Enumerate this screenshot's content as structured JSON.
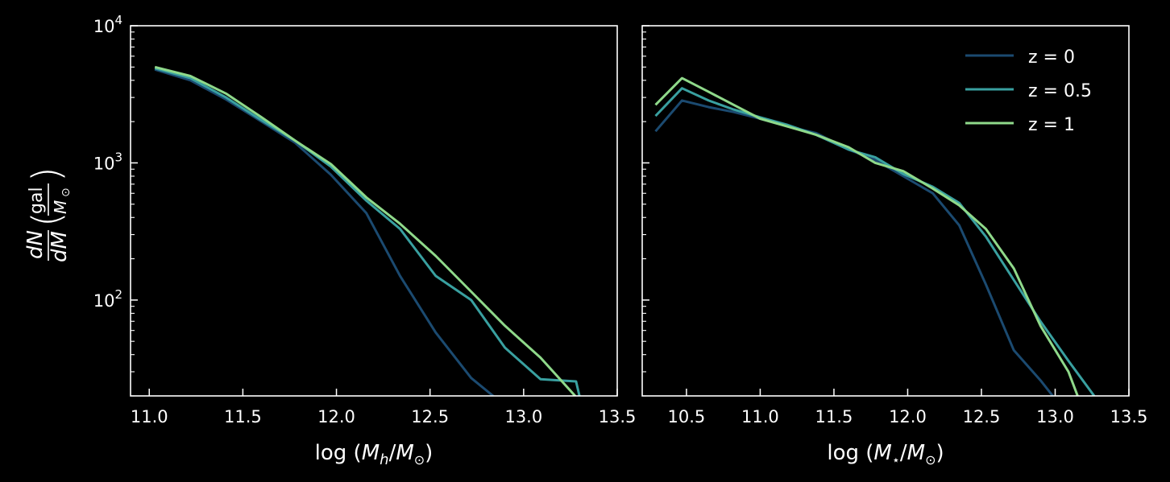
{
  "colors": {
    "background": "#000000",
    "axes": "#ffffff",
    "z0": "#1b4a70",
    "z05": "#39a0a0",
    "z1": "#8fd98a"
  },
  "chart_data": [
    {
      "type": "line",
      "xlabel": "log (M_h/M_⊙)",
      "ylabel": "dN/dM (gal/M_⊙)",
      "yscale": "log",
      "xlim": [
        10.9,
        13.5
      ],
      "ylim": [
        20,
        10000
      ],
      "x_ticks": [
        "11.0",
        "11.5",
        "12.0",
        "12.5",
        "13.0",
        "13.5"
      ],
      "y_ticks": [
        "10^2",
        "10^3",
        "10^4"
      ],
      "legend": false,
      "series": [
        {
          "name": "z = 0",
          "color": "#1b4a70",
          "x": [
            11.03,
            11.22,
            11.41,
            11.6,
            11.78,
            11.97,
            12.16,
            12.34,
            12.53,
            12.72,
            12.9
          ],
          "y": [
            4800,
            4000,
            2900,
            2000,
            1400,
            820,
            430,
            150,
            58,
            27,
            17
          ]
        },
        {
          "name": "z = 0.5",
          "color": "#39a0a0",
          "x": [
            11.03,
            11.22,
            11.41,
            11.6,
            11.78,
            11.97,
            12.16,
            12.34,
            12.53,
            12.72,
            12.9,
            13.09,
            13.28,
            13.31
          ],
          "y": [
            4900,
            4150,
            3000,
            2050,
            1450,
            940,
            530,
            330,
            150,
            100,
            45,
            26.5,
            25.5,
            17
          ]
        },
        {
          "name": "z = 1",
          "color": "#8fd98a",
          "x": [
            11.03,
            11.22,
            11.41,
            11.6,
            11.78,
            11.97,
            12.16,
            12.34,
            12.53,
            12.72,
            12.9,
            13.09,
            13.29
          ],
          "y": [
            5000,
            4300,
            3200,
            2150,
            1450,
            980,
            560,
            360,
            210,
            115,
            65,
            38,
            19
          ]
        }
      ]
    },
    {
      "type": "line",
      "xlabel": "log (M_⋆/M_⊙)",
      "ylabel": "",
      "yscale": "log",
      "xlim": [
        10.2,
        13.5
      ],
      "ylim": [
        20,
        10000
      ],
      "x_ticks": [
        "10.5",
        "11.0",
        "11.5",
        "12.0",
        "12.5",
        "13.0",
        "13.5"
      ],
      "legend": true,
      "legend_position": "top-right",
      "series": [
        {
          "name": "z = 0",
          "color": "#1b4a70",
          "x": [
            10.29,
            10.47,
            10.65,
            10.82,
            11.0,
            11.18,
            11.38,
            11.6,
            11.78,
            11.97,
            12.17,
            12.35,
            12.53,
            12.72,
            12.9,
            13.0
          ],
          "y": [
            1700,
            2850,
            2550,
            2350,
            2100,
            1850,
            1650,
            1250,
            1050,
            800,
            600,
            350,
            130,
            43,
            26,
            19
          ]
        },
        {
          "name": "z = 0.5",
          "color": "#39a0a0",
          "x": [
            10.29,
            10.47,
            10.65,
            10.82,
            11.0,
            11.18,
            11.38,
            11.6,
            11.78,
            11.97,
            12.17,
            12.35,
            12.53,
            12.72,
            12.9,
            13.09,
            13.28
          ],
          "y": [
            2200,
            3500,
            2850,
            2450,
            2150,
            1900,
            1600,
            1250,
            1100,
            830,
            670,
            510,
            290,
            140,
            70,
            36,
            19
          ]
        },
        {
          "name": "z = 1",
          "color": "#8fd98a",
          "x": [
            10.29,
            10.47,
            10.65,
            10.82,
            11.0,
            11.18,
            11.38,
            11.6,
            11.78,
            11.97,
            12.17,
            12.35,
            12.53,
            12.72,
            12.9,
            13.09,
            13.16
          ],
          "y": [
            2650,
            4150,
            3300,
            2650,
            2100,
            1850,
            1600,
            1300,
            1000,
            870,
            650,
            490,
            330,
            170,
            65,
            30,
            19
          ]
        }
      ]
    }
  ]
}
